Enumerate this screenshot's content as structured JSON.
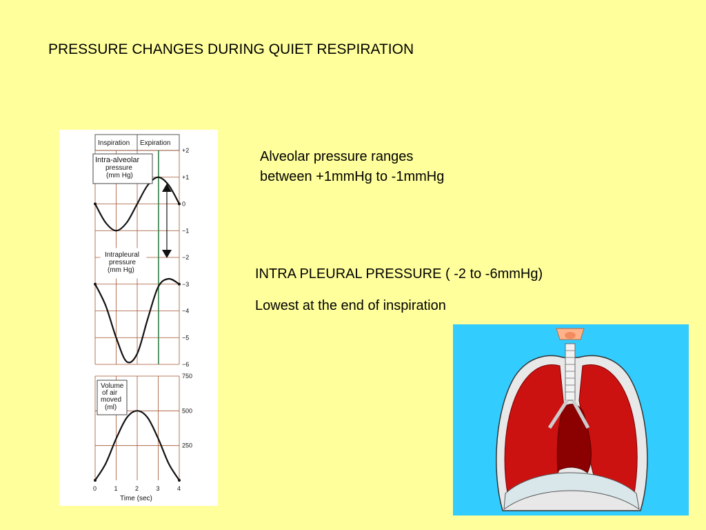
{
  "slide": {
    "title": "PRESSURE CHANGES DURING QUIET RESPIRATION",
    "alveolar_text": [
      "Alveolar pressure  ranges",
      "between +1mmHg to -1mmHg"
    ],
    "pleural_text": [
      "INTRA PLEURAL PRESSURE ( -2 to -6mmHg)",
      "Lowest at the end of inspiration"
    ]
  },
  "figure": {
    "header": {
      "inspiration": "Inspiration",
      "expiration": "Expiration"
    },
    "alveolar_label": [
      "Intra-alveolar",
      "pressure",
      "(mm Hg)"
    ],
    "pleural_label": [
      "Intrapleural",
      "pressure",
      "(mm Hg)"
    ],
    "volume_label": [
      "Volume",
      "of air",
      "moved",
      "(ml)"
    ],
    "pressure_ticks": [
      "+2",
      "+1",
      "0",
      "−1",
      "−2",
      "−3",
      "−4",
      "−5",
      "−6"
    ],
    "volume_ticks": [
      "750",
      "500",
      "250"
    ],
    "time_ticks": [
      "0",
      "1",
      "2",
      "3",
      "4"
    ],
    "time_label": "Time (sec)"
  },
  "chart_data": {
    "type": "line",
    "x": [
      0,
      0.5,
      1,
      1.5,
      2,
      2.5,
      3,
      3.5,
      4
    ],
    "xlabel": "Time (sec)",
    "series": [
      {
        "name": "Intra-alveolar pressure (mm Hg)",
        "values": [
          0,
          -0.7,
          -1,
          -0.7,
          0,
          0.7,
          1,
          0.7,
          0
        ]
      },
      {
        "name": "Intrapleural pressure (mm Hg)",
        "values": [
          -3,
          -3.8,
          -5,
          -5.9,
          -5.6,
          -4.3,
          -3.1,
          -2.8,
          -3
        ]
      },
      {
        "name": "Volume of air moved (ml)",
        "values": [
          0,
          120,
          300,
          450,
          500,
          450,
          300,
          120,
          0
        ]
      }
    ]
  },
  "colors": {
    "background": "#ffff9c",
    "lung_background": "#33ccff",
    "lung_tissue": "#cc1111",
    "curve": "#111111",
    "marker_line": "#2e8b57"
  }
}
